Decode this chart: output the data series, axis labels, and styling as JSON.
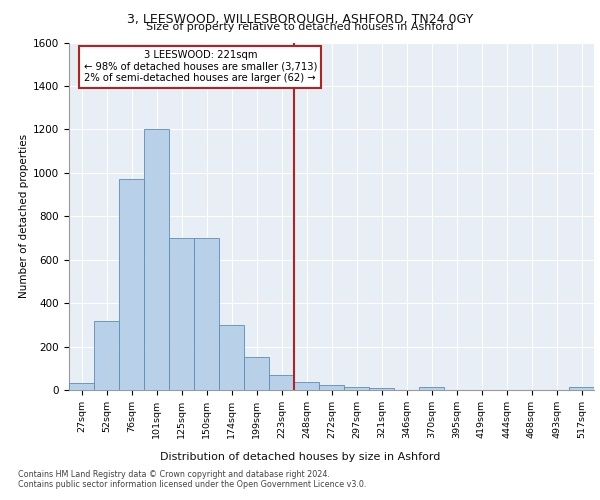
{
  "title1": "3, LEESWOOD, WILLESBOROUGH, ASHFORD, TN24 0GY",
  "title2": "Size of property relative to detached houses in Ashford",
  "xlabel": "Distribution of detached houses by size in Ashford",
  "ylabel": "Number of detached properties",
  "bar_labels": [
    "27sqm",
    "52sqm",
    "76sqm",
    "101sqm",
    "125sqm",
    "150sqm",
    "174sqm",
    "199sqm",
    "223sqm",
    "248sqm",
    "272sqm",
    "297sqm",
    "321sqm",
    "346sqm",
    "370sqm",
    "395sqm",
    "419sqm",
    "444sqm",
    "468sqm",
    "493sqm",
    "517sqm"
  ],
  "bar_values": [
    30,
    320,
    970,
    1200,
    700,
    700,
    300,
    150,
    70,
    35,
    22,
    15,
    10,
    0,
    12,
    0,
    0,
    0,
    0,
    0,
    12
  ],
  "bar_color": "#b8d0e8",
  "bar_edge_color": "#5b8db8",
  "vline_index": 8,
  "vline_color": "#b22222",
  "annotation_text": "3 LEESWOOD: 221sqm\n← 98% of detached houses are smaller (3,713)\n2% of semi-detached houses are larger (62) →",
  "annotation_box_color": "#ffffff",
  "annotation_box_edge": "#b22222",
  "ylim": [
    0,
    1600
  ],
  "yticks": [
    0,
    200,
    400,
    600,
    800,
    1000,
    1200,
    1400,
    1600
  ],
  "ax_background": "#e8eef5",
  "grid_color": "#ffffff",
  "footer1": "Contains HM Land Registry data © Crown copyright and database right 2024.",
  "footer2": "Contains public sector information licensed under the Open Government Licence v3.0."
}
